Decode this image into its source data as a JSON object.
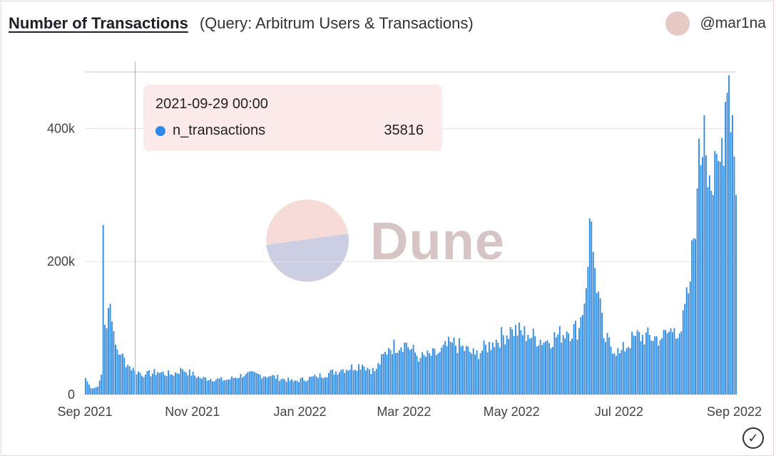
{
  "header": {
    "title": "Number of Transactions",
    "subtitle": "(Query: Arbitrum Users & Transactions)",
    "author": "@mar1na"
  },
  "tooltip": {
    "time": "2021-09-29 00:00",
    "series_name": "n_transactions",
    "value": "35816"
  },
  "watermark": {
    "text": "Dune"
  },
  "icons": {
    "status": "check-circle-icon"
  },
  "colors": {
    "bar": "#2e8ae6",
    "grid": "#f3dede",
    "cursor": "#c9a9a9",
    "tooltip_bg": "#fce8e8",
    "avatar": "#e6c9c2"
  },
  "chart_data": {
    "type": "bar",
    "x_range": [
      "2021-09-01",
      "2022-09-05"
    ],
    "ylim": [
      0,
      500000
    ],
    "grid": true,
    "x_tick_labels": [
      {
        "date": "2021-09-01",
        "label": "Sep 2021"
      },
      {
        "date": "2021-11-01",
        "label": "Nov 2021"
      },
      {
        "date": "2022-01-01",
        "label": "Jan 2022"
      },
      {
        "date": "2022-03-01",
        "label": "Mar 2022"
      },
      {
        "date": "2022-05-01",
        "label": "May 2022"
      },
      {
        "date": "2022-07-01",
        "label": "Jul 2022"
      },
      {
        "date": "2022-09-01",
        "label": "Sep 2022"
      }
    ],
    "y_ticks": [
      {
        "value": 0,
        "label": "0"
      },
      {
        "value": 200000,
        "label": "200k"
      },
      {
        "value": 400000,
        "label": "400k"
      }
    ],
    "series": [
      {
        "name": "n_transactions",
        "color": "#2e8ae6",
        "control_points": [
          [
            "2021-09-01",
            25000
          ],
          [
            "2021-09-04",
            10000
          ],
          [
            "2021-09-08",
            12000
          ],
          [
            "2021-09-10",
            30000
          ],
          [
            "2021-09-11",
            255000
          ],
          [
            "2021-09-12",
            105000
          ],
          [
            "2021-09-14",
            130000
          ],
          [
            "2021-09-16",
            110000
          ],
          [
            "2021-09-18",
            75000
          ],
          [
            "2021-09-21",
            60000
          ],
          [
            "2021-09-25",
            45000
          ],
          [
            "2021-09-29",
            35816
          ],
          [
            "2021-10-05",
            30000
          ],
          [
            "2021-10-12",
            34000
          ],
          [
            "2021-10-20",
            30000
          ],
          [
            "2021-10-26",
            38000
          ],
          [
            "2021-11-05",
            25000
          ],
          [
            "2021-11-20",
            22000
          ],
          [
            "2021-12-01",
            31000
          ],
          [
            "2021-12-15",
            28000
          ],
          [
            "2021-12-28",
            20000
          ],
          [
            "2022-01-10",
            27000
          ],
          [
            "2022-01-25",
            38000
          ],
          [
            "2022-02-05",
            45000
          ],
          [
            "2022-02-12",
            35000
          ],
          [
            "2022-02-20",
            70000
          ],
          [
            "2022-03-01",
            78000
          ],
          [
            "2022-03-10",
            55000
          ],
          [
            "2022-03-20",
            62000
          ],
          [
            "2022-03-28",
            78000
          ],
          [
            "2022-04-10",
            60000
          ],
          [
            "2022-04-20",
            78000
          ],
          [
            "2022-05-01",
            98000
          ],
          [
            "2022-05-10",
            90000
          ],
          [
            "2022-05-20",
            80000
          ],
          [
            "2022-06-01",
            95000
          ],
          [
            "2022-06-08",
            100000
          ],
          [
            "2022-06-12",
            160000
          ],
          [
            "2022-06-14",
            265000
          ],
          [
            "2022-06-17",
            190000
          ],
          [
            "2022-06-22",
            85000
          ],
          [
            "2022-07-01",
            62000
          ],
          [
            "2022-07-10",
            88000
          ],
          [
            "2022-07-25",
            85000
          ],
          [
            "2022-08-01",
            100000
          ],
          [
            "2022-08-05",
            95000
          ],
          [
            "2022-08-10",
            170000
          ],
          [
            "2022-08-14",
            310000
          ],
          [
            "2022-08-18",
            420000
          ],
          [
            "2022-08-23",
            300000
          ],
          [
            "2022-08-27",
            350000
          ],
          [
            "2022-08-30",
            440000
          ],
          [
            "2022-09-01",
            480000
          ],
          [
            "2022-09-03",
            420000
          ],
          [
            "2022-09-05",
            300000
          ]
        ]
      }
    ]
  }
}
